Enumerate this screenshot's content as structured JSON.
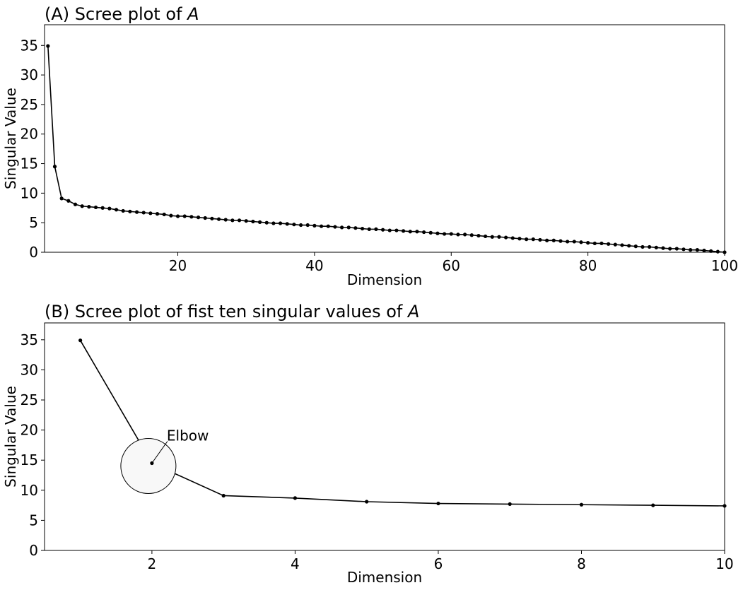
{
  "chart_data": [
    {
      "type": "line",
      "title_prefix": "(A) Scree plot of ",
      "title_var": "A",
      "xlabel": "Dimension",
      "ylabel": "Singular Value",
      "xlim": [
        0.5,
        100
      ],
      "ylim": [
        0,
        38.5
      ],
      "xticks": [
        20,
        40,
        60,
        80,
        100
      ],
      "yticks": [
        0,
        5,
        10,
        15,
        20,
        25,
        30,
        35
      ],
      "grid": false,
      "marker": "circle",
      "color": "#000000",
      "x": [
        1,
        2,
        3,
        4,
        5,
        6,
        7,
        8,
        9,
        10,
        11,
        12,
        13,
        14,
        15,
        16,
        17,
        18,
        19,
        20,
        21,
        22,
        23,
        24,
        25,
        26,
        27,
        28,
        29,
        30,
        31,
        32,
        33,
        34,
        35,
        36,
        37,
        38,
        39,
        40,
        41,
        42,
        43,
        44,
        45,
        46,
        47,
        48,
        49,
        50,
        51,
        52,
        53,
        54,
        55,
        56,
        57,
        58,
        59,
        60,
        61,
        62,
        63,
        64,
        65,
        66,
        67,
        68,
        69,
        70,
        71,
        72,
        73,
        74,
        75,
        76,
        77,
        78,
        79,
        80,
        81,
        82,
        83,
        84,
        85,
        86,
        87,
        88,
        89,
        90,
        91,
        92,
        93,
        94,
        95,
        96,
        97,
        98,
        99,
        100
      ],
      "values": [
        34.9,
        14.5,
        9.1,
        8.7,
        8.1,
        7.8,
        7.7,
        7.6,
        7.5,
        7.4,
        7.2,
        7.0,
        6.9,
        6.8,
        6.7,
        6.6,
        6.5,
        6.4,
        6.2,
        6.1,
        6.1,
        6.0,
        5.9,
        5.8,
        5.7,
        5.6,
        5.5,
        5.4,
        5.4,
        5.3,
        5.2,
        5.1,
        5.0,
        4.9,
        4.9,
        4.8,
        4.7,
        4.6,
        4.6,
        4.5,
        4.4,
        4.4,
        4.3,
        4.2,
        4.2,
        4.1,
        4.0,
        3.9,
        3.9,
        3.8,
        3.7,
        3.7,
        3.6,
        3.5,
        3.5,
        3.4,
        3.3,
        3.2,
        3.1,
        3.1,
        3.0,
        3.0,
        2.9,
        2.8,
        2.7,
        2.6,
        2.6,
        2.5,
        2.4,
        2.3,
        2.2,
        2.2,
        2.1,
        2.0,
        2.0,
        1.9,
        1.8,
        1.8,
        1.7,
        1.6,
        1.5,
        1.5,
        1.4,
        1.3,
        1.2,
        1.1,
        1.0,
        0.9,
        0.9,
        0.8,
        0.7,
        0.6,
        0.6,
        0.5,
        0.4,
        0.4,
        0.3,
        0.2,
        0.1,
        0.0
      ]
    },
    {
      "type": "line",
      "title_prefix": "(B) Scree plot of fist ten singular values of ",
      "title_var": "A",
      "xlabel": "Dimension",
      "ylabel": "Singular Value",
      "xlim": [
        0.5,
        10
      ],
      "ylim": [
        0,
        37.8
      ],
      "xticks": [
        2,
        4,
        6,
        8,
        10
      ],
      "yticks": [
        0,
        5,
        10,
        15,
        20,
        25,
        30,
        35
      ],
      "grid": false,
      "marker": "circle",
      "color": "#000000",
      "x": [
        1,
        2,
        3,
        4,
        5,
        6,
        7,
        8,
        9,
        10
      ],
      "values": [
        34.9,
        14.5,
        9.1,
        8.7,
        8.1,
        7.8,
        7.7,
        7.6,
        7.5,
        7.4
      ],
      "annotation": {
        "text": "Elbow",
        "target": [
          2,
          14.5
        ],
        "fill": "#f8f8f8"
      }
    }
  ]
}
